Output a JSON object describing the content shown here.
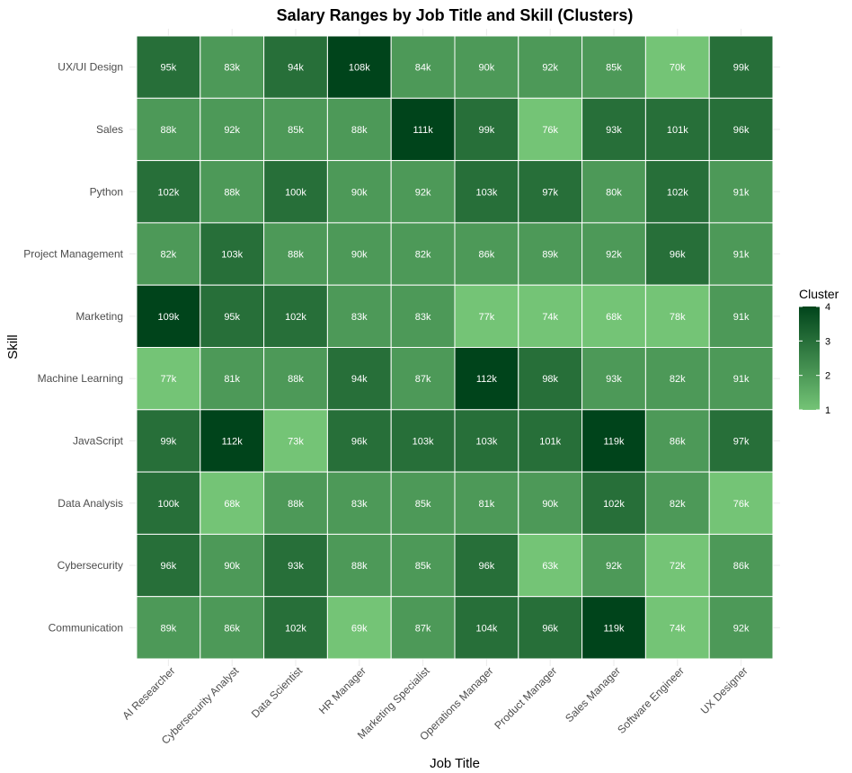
{
  "chart_data": {
    "type": "heatmap",
    "title": "Salary Ranges by Job Title and Skill (Clusters)",
    "xlabel": "Job Title",
    "ylabel": "Skill",
    "x_categories": [
      "AI Researcher",
      "Cybersecurity Analyst",
      "Data Scientist",
      "HR Manager",
      "Marketing Specialist",
      "Operations Manager",
      "Product Manager",
      "Sales Manager",
      "Software Engineer",
      "UX Designer"
    ],
    "y_categories": [
      "UX/UI Design",
      "Sales",
      "Python",
      "Project Management",
      "Marketing",
      "Machine Learning",
      "JavaScript",
      "Data Analysis",
      "Cybersecurity",
      "Communication"
    ],
    "labels": [
      [
        "95k",
        "83k",
        "94k",
        "108k",
        "84k",
        "90k",
        "92k",
        "85k",
        "70k",
        "99k"
      ],
      [
        "88k",
        "92k",
        "85k",
        "88k",
        "111k",
        "99k",
        "76k",
        "93k",
        "101k",
        "96k"
      ],
      [
        "102k",
        "88k",
        "100k",
        "90k",
        "92k",
        "103k",
        "97k",
        "80k",
        "102k",
        "91k"
      ],
      [
        "82k",
        "103k",
        "88k",
        "90k",
        "82k",
        "86k",
        "89k",
        "92k",
        "96k",
        "91k"
      ],
      [
        "109k",
        "95k",
        "102k",
        "83k",
        "83k",
        "77k",
        "74k",
        "68k",
        "78k",
        "91k"
      ],
      [
        "77k",
        "81k",
        "88k",
        "94k",
        "87k",
        "112k",
        "98k",
        "93k",
        "82k",
        "91k"
      ],
      [
        "99k",
        "112k",
        "73k",
        "96k",
        "103k",
        "103k",
        "101k",
        "119k",
        "86k",
        "97k"
      ],
      [
        "100k",
        "68k",
        "88k",
        "83k",
        "85k",
        "81k",
        "90k",
        "102k",
        "82k",
        "76k"
      ],
      [
        "96k",
        "90k",
        "93k",
        "88k",
        "85k",
        "96k",
        "63k",
        "92k",
        "72k",
        "86k"
      ],
      [
        "89k",
        "86k",
        "102k",
        "69k",
        "87k",
        "104k",
        "96k",
        "119k",
        "74k",
        "92k"
      ]
    ],
    "clusters": [
      [
        3,
        2,
        3,
        4,
        2,
        2,
        2,
        2,
        1,
        3
      ],
      [
        2,
        2,
        2,
        2,
        4,
        3,
        1,
        3,
        3,
        3
      ],
      [
        3,
        2,
        3,
        2,
        2,
        3,
        3,
        2,
        3,
        2
      ],
      [
        2,
        3,
        2,
        2,
        2,
        2,
        2,
        2,
        3,
        2
      ],
      [
        4,
        3,
        3,
        2,
        2,
        1,
        1,
        1,
        1,
        2
      ],
      [
        1,
        2,
        2,
        3,
        2,
        4,
        3,
        2,
        2,
        2
      ],
      [
        3,
        4,
        1,
        3,
        3,
        3,
        3,
        4,
        2,
        3
      ],
      [
        3,
        1,
        2,
        2,
        2,
        2,
        2,
        3,
        2,
        1
      ],
      [
        3,
        2,
        3,
        2,
        2,
        3,
        1,
        2,
        1,
        2
      ],
      [
        2,
        2,
        3,
        1,
        2,
        3,
        3,
        4,
        1,
        2
      ]
    ],
    "legend": {
      "title": "Cluster",
      "min": 1,
      "max": 4,
      "ticks": [
        1,
        2,
        3,
        4
      ],
      "color_low": "#74c476",
      "color_high": "#00441b",
      "placement": "right"
    },
    "grid": false
  }
}
